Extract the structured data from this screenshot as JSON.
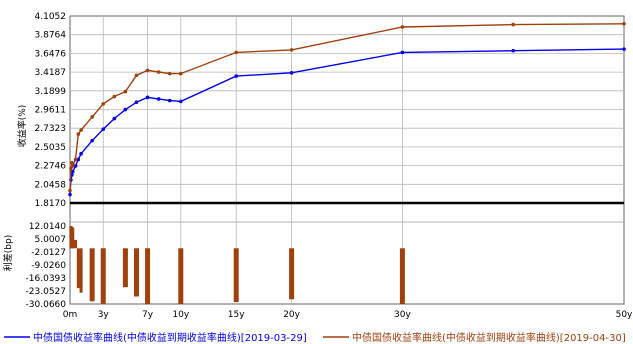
{
  "chart_data": {
    "type": "line",
    "ylabel_top": "收益率(%)",
    "ylabel_bottom": "利差(bp)",
    "x_ticks": [
      "0m",
      "3y",
      "7y",
      "10y",
      "15y",
      "20y",
      "30y",
      "50y"
    ],
    "x_tick_values": [
      0,
      3,
      7,
      10,
      15,
      20,
      30,
      50
    ],
    "xlim": [
      0,
      50
    ],
    "top_axis": {
      "ylim": [
        1.817,
        4.1052
      ],
      "ticks": [
        "4.1052",
        "3.8764",
        "3.6476",
        "3.4187",
        "3.1899",
        "2.9611",
        "2.7323",
        "2.5035",
        "2.2746",
        "2.0458",
        "1.8170"
      ],
      "tick_values": [
        4.1052,
        3.8764,
        3.6476,
        3.4187,
        3.1899,
        2.9611,
        2.7323,
        2.5035,
        2.2746,
        2.0458,
        1.817
      ],
      "grid": true
    },
    "bottom_axis": {
      "ylim": [
        -30.066,
        12.014
      ],
      "ticks": [
        "12.0140",
        "5.0007",
        "-2.0127",
        "-9.0260",
        "-16.0393",
        "-23.0527",
        "-30.0660"
      ],
      "tick_values": [
        12.014,
        5.0007,
        -2.0127,
        -9.026,
        -16.0393,
        -23.0527,
        -30.066
      ],
      "grid": false
    },
    "series": [
      {
        "name": "中债国债收益率曲线(中债收益到期收益率曲线)[2019-03-29]",
        "color": "#0000ee",
        "x": [
          0,
          0.08,
          0.17,
          0.25,
          0.5,
          0.75,
          1,
          2,
          3,
          4,
          5,
          6,
          7,
          8,
          9,
          10,
          15,
          20,
          30,
          40,
          50
        ],
        "y": [
          1.92,
          2.1,
          2.16,
          2.2,
          2.27,
          2.35,
          2.42,
          2.58,
          2.72,
          2.85,
          2.96,
          3.05,
          3.11,
          3.09,
          3.07,
          3.06,
          3.37,
          3.41,
          3.66,
          3.68,
          3.7
        ]
      },
      {
        "name": "中债国债收益率曲线(中债收益到期收益率曲线)[2019-04-30]",
        "color": "#a0410d",
        "x": [
          0,
          0.08,
          0.17,
          0.25,
          0.5,
          0.75,
          1,
          2,
          3,
          4,
          5,
          6,
          7,
          8,
          9,
          10,
          15,
          20,
          30,
          40,
          50
        ],
        "y": [
          1.97,
          2.24,
          2.31,
          2.27,
          2.35,
          2.66,
          2.71,
          2.87,
          3.03,
          3.12,
          3.18,
          3.38,
          3.44,
          3.42,
          3.4,
          3.4,
          3.66,
          3.69,
          3.97,
          4.0,
          4.01
        ]
      }
    ],
    "spread": {
      "color": "#a0410d",
      "x": [
        0.08,
        0.17,
        0.25,
        0.5,
        0.75,
        1,
        2,
        3,
        5,
        6,
        7,
        10,
        15,
        20,
        30
      ],
      "y": [
        13.5,
        11.5,
        11.0,
        4.5,
        -21.5,
        -24.0,
        -28.6,
        -30.0,
        -21.0,
        -26.0,
        -32.5,
        -34.0,
        -29.0,
        -27.5,
        -31.5
      ]
    },
    "baseline_value": 1.817
  }
}
